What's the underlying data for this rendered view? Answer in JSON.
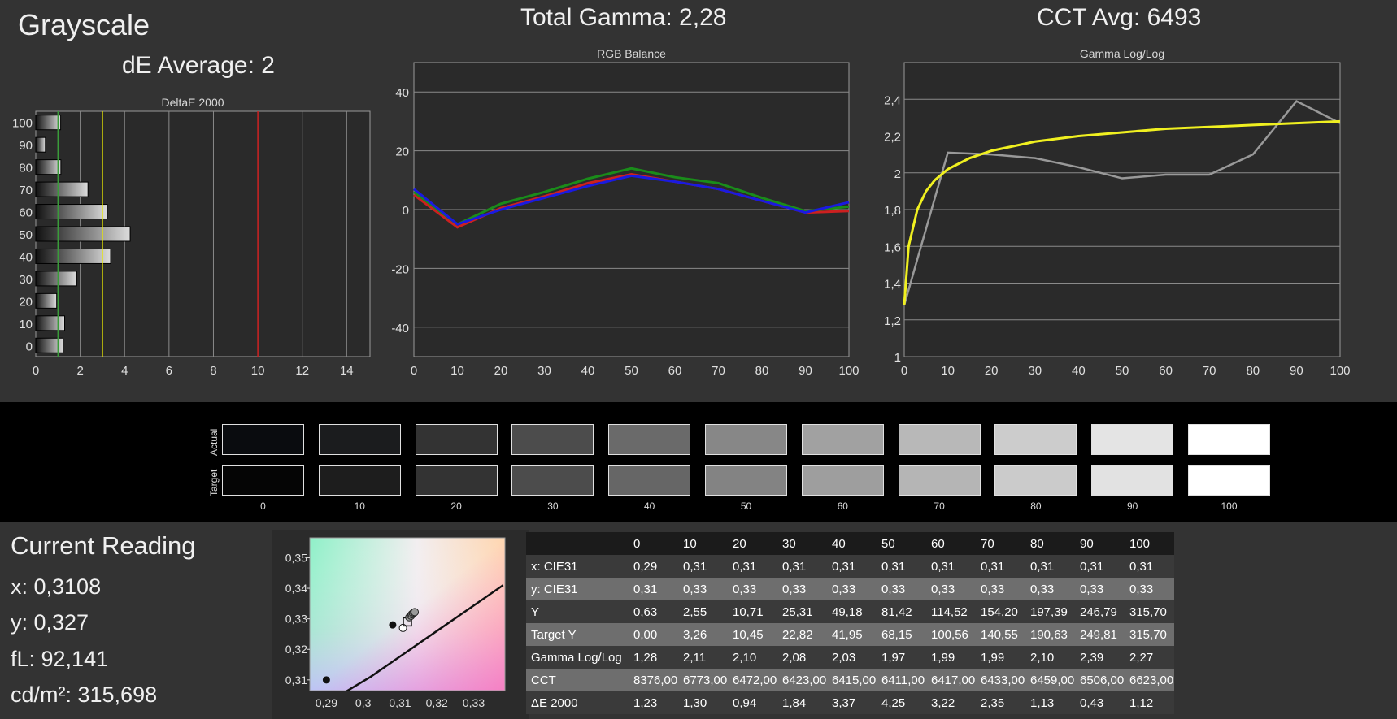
{
  "header": {
    "title": "Grayscale",
    "de_average": "dE Average: 2",
    "total_gamma": "Total Gamma: 2,28",
    "cct_avg": "CCT Avg: 6493"
  },
  "chart_data": [
    {
      "type": "bar",
      "orientation": "horizontal",
      "title": "DeltaE 2000",
      "categories": [
        "0",
        "10",
        "20",
        "30",
        "40",
        "50",
        "60",
        "70",
        "80",
        "90",
        "100"
      ],
      "values": [
        1.23,
        1.3,
        0.94,
        1.84,
        3.37,
        4.25,
        3.22,
        2.35,
        1.13,
        0.43,
        1.12
      ],
      "xlim": [
        0,
        15
      ],
      "xticks": [
        "0",
        "2",
        "4",
        "6",
        "8",
        "10",
        "12",
        "14"
      ],
      "reference_lines": [
        {
          "value": 1,
          "color": "#3a9c3a"
        },
        {
          "value": 3,
          "color": "#e8e800"
        },
        {
          "value": 10,
          "color": "#cc2020"
        }
      ],
      "grid": true
    },
    {
      "type": "line",
      "title": "RGB Balance",
      "x": [
        0,
        10,
        20,
        30,
        40,
        50,
        60,
        70,
        80,
        90,
        100
      ],
      "xticks": [
        "0",
        "10",
        "20",
        "30",
        "40",
        "50",
        "60",
        "70",
        "80",
        "90",
        "100"
      ],
      "yticks": [
        "40",
        "20",
        "0",
        "-20",
        "-40"
      ],
      "ylim": [
        -50,
        50
      ],
      "series": [
        {
          "color": "#cc2020",
          "values": [
            5,
            -6,
            0.5,
            4.5,
            9,
            12,
            9.5,
            7,
            3,
            -1,
            -0.5
          ]
        },
        {
          "color": "#1a8c1a",
          "values": [
            6,
            -5,
            2,
            6,
            10.5,
            14,
            11,
            9,
            4,
            -0.5,
            1
          ]
        },
        {
          "color": "#1a1ae0",
          "values": [
            7,
            -5,
            0,
            4,
            8,
            11.5,
            9.5,
            7,
            3,
            -1,
            2.5
          ]
        }
      ],
      "grid": true
    },
    {
      "type": "line",
      "title": "Gamma Log/Log",
      "x": [
        0,
        10,
        20,
        30,
        40,
        50,
        60,
        70,
        80,
        90,
        100
      ],
      "xticks": [
        "0",
        "10",
        "20",
        "30",
        "40",
        "50",
        "60",
        "70",
        "80",
        "90",
        "100"
      ],
      "yticks": [
        "2,4",
        "2,2",
        "2",
        "1,8",
        "1,6",
        "1,4",
        "1,2",
        "1"
      ],
      "ylim": [
        1,
        2.6
      ],
      "series": [
        {
          "color": "#999999",
          "values": [
            1.28,
            2.11,
            2.1,
            2.08,
            2.03,
            1.97,
            1.99,
            1.99,
            2.1,
            2.39,
            2.27
          ]
        }
      ],
      "target_curve": {
        "color": "#f0f020",
        "points": [
          [
            0,
            1.28
          ],
          [
            1,
            1.6
          ],
          [
            3,
            1.8
          ],
          [
            5,
            1.9
          ],
          [
            7,
            1.96
          ],
          [
            10,
            2.02
          ],
          [
            15,
            2.08
          ],
          [
            20,
            2.12
          ],
          [
            30,
            2.17
          ],
          [
            40,
            2.2
          ],
          [
            50,
            2.22
          ],
          [
            60,
            2.24
          ],
          [
            70,
            2.25
          ],
          [
            80,
            2.26
          ],
          [
            90,
            2.27
          ],
          [
            100,
            2.28
          ]
        ]
      },
      "grid": true
    },
    {
      "type": "scatter",
      "title": "",
      "xticks": [
        "0,29",
        "0,3",
        "0,31",
        "0,32",
        "0,33"
      ],
      "yticks": [
        "0,35",
        "0,34",
        "0,33",
        "0,32",
        "0,31"
      ],
      "xlim": [
        0.2855,
        0.3385
      ],
      "ylim": [
        0.3065,
        0.3565
      ],
      "points": [
        {
          "x": 0.29,
          "y": 0.31,
          "style": "filled"
        },
        {
          "x": 0.308,
          "y": 0.328,
          "style": "filled"
        },
        {
          "x": 0.3108,
          "y": 0.327,
          "style": "open"
        },
        {
          "x": 0.312,
          "y": 0.329,
          "style": "square"
        },
        {
          "x": 0.3125,
          "y": 0.3305,
          "style": "gray"
        },
        {
          "x": 0.313,
          "y": 0.331,
          "style": "gray"
        },
        {
          "x": 0.3132,
          "y": 0.3315,
          "style": "gray"
        },
        {
          "x": 0.3135,
          "y": 0.3318,
          "style": "gray"
        },
        {
          "x": 0.3138,
          "y": 0.332,
          "style": "gray"
        },
        {
          "x": 0.314,
          "y": 0.3322,
          "style": "gray"
        }
      ],
      "locus": [
        [
          0.293,
          0.3045
        ],
        [
          0.302,
          0.311
        ],
        [
          0.311,
          0.3185
        ],
        [
          0.32,
          0.326
        ],
        [
          0.329,
          0.3335
        ],
        [
          0.338,
          0.341
        ]
      ]
    }
  ],
  "swatches": {
    "row_labels": [
      "Actual",
      "Target"
    ],
    "labels": [
      "0",
      "10",
      "20",
      "30",
      "40",
      "50",
      "60",
      "70",
      "80",
      "90",
      "100"
    ],
    "actual_colors": [
      "#0a0c0f",
      "#1b1c1e",
      "#333333",
      "#4c4c4c",
      "#6a6a6a",
      "#878787",
      "#a1a1a1",
      "#b8b8b8",
      "#cccccc",
      "#e4e4e4",
      "#ffffff"
    ],
    "target_colors": [
      "#050505",
      "#1d1d1d",
      "#333333",
      "#4c4c4c",
      "#666666",
      "#838383",
      "#9e9e9e",
      "#b5b5b5",
      "#cbcbcb",
      "#e2e2e2",
      "#ffffff"
    ]
  },
  "current_reading": {
    "title": "Current Reading",
    "x": "x: 0,3108",
    "y": "y: 0,327",
    "fl": "fL: 92,141",
    "cdm2": "cd/m²: 315,698"
  },
  "table": {
    "headers": [
      "",
      "0",
      "10",
      "20",
      "30",
      "40",
      "50",
      "60",
      "70",
      "80",
      "90",
      "100"
    ],
    "rows": [
      {
        "label": "x: CIE31",
        "values": [
          "0,29",
          "0,31",
          "0,31",
          "0,31",
          "0,31",
          "0,31",
          "0,31",
          "0,31",
          "0,31",
          "0,31",
          "0,31"
        ]
      },
      {
        "label": "y: CIE31",
        "values": [
          "0,31",
          "0,33",
          "0,33",
          "0,33",
          "0,33",
          "0,33",
          "0,33",
          "0,33",
          "0,33",
          "0,33",
          "0,33"
        ]
      },
      {
        "label": "Y",
        "values": [
          "0,63",
          "2,55",
          "10,71",
          "25,31",
          "49,18",
          "81,42",
          "114,52",
          "154,20",
          "197,39",
          "246,79",
          "315,70"
        ]
      },
      {
        "label": "Target Y",
        "values": [
          "0,00",
          "3,26",
          "10,45",
          "22,82",
          "41,95",
          "68,15",
          "100,56",
          "140,55",
          "190,63",
          "249,81",
          "315,70"
        ]
      },
      {
        "label": "Gamma Log/Log",
        "values": [
          "1,28",
          "2,11",
          "2,10",
          "2,08",
          "2,03",
          "1,97",
          "1,99",
          "1,99",
          "2,10",
          "2,39",
          "2,27"
        ]
      },
      {
        "label": "CCT",
        "values": [
          "8376,00",
          "6773,00",
          "6472,00",
          "6423,00",
          "6415,00",
          "6411,00",
          "6417,00",
          "6433,00",
          "6459,00",
          "6506,00",
          "6623,00"
        ]
      },
      {
        "label": "ΔE 2000",
        "values": [
          "1,23",
          "1,30",
          "0,94",
          "1,84",
          "3,37",
          "4,25",
          "3,22",
          "2,35",
          "1,13",
          "0,43",
          "1,12"
        ]
      }
    ]
  }
}
